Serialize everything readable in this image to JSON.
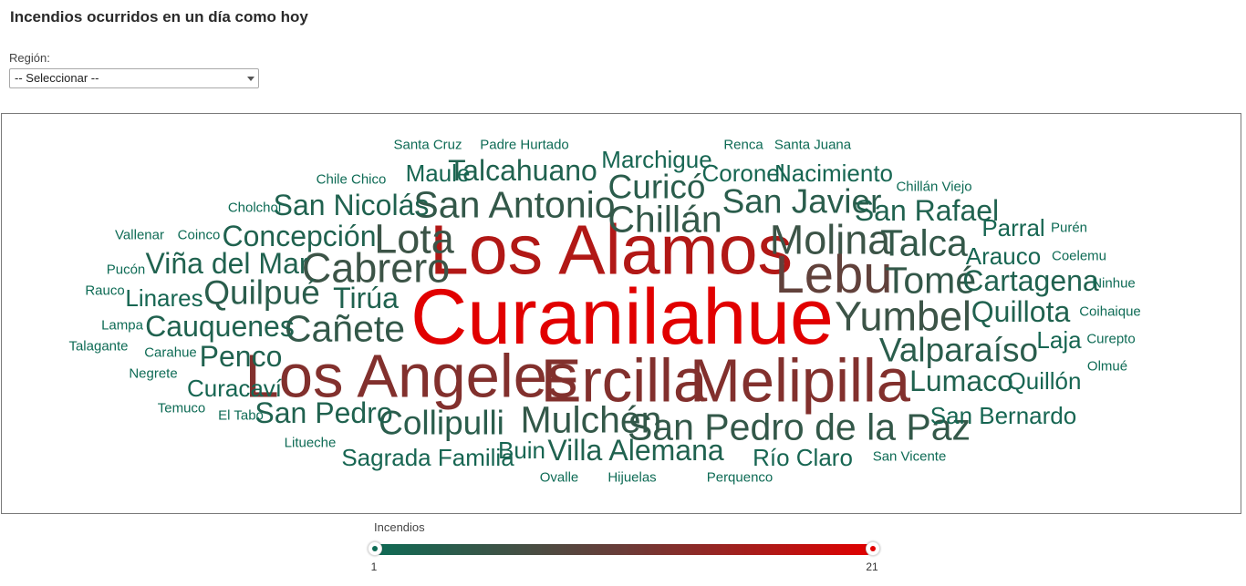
{
  "page": {
    "title": "Incendios ocurridos en un día como hoy"
  },
  "region_filter": {
    "label": "Región:",
    "selected": "-- Seleccionar --"
  },
  "legend": {
    "title": "Incendios",
    "min_label": "1",
    "max_label": "21",
    "min": 1,
    "max": 21,
    "color_low": "#0e6b55",
    "color_high": "#e10000"
  },
  "word_cloud": {
    "words": [
      {
        "text": "Curanilahue",
        "count": 21
      },
      {
        "text": "Los Alamos",
        "count": 17
      },
      {
        "text": "Los Angeles",
        "count": 13
      },
      {
        "text": "Ercilla",
        "count": 13
      },
      {
        "text": "Melipilla",
        "count": 13
      },
      {
        "text": "Lebu",
        "count": 10
      },
      {
        "text": "Molina",
        "count": 6
      },
      {
        "text": "Chillán",
        "count": 5
      },
      {
        "text": "Cabrero",
        "count": 6
      },
      {
        "text": "Lota",
        "count": 6
      },
      {
        "text": "San Antonio",
        "count": 5
      },
      {
        "text": "Yumbel",
        "count": 6
      },
      {
        "text": "Tomé",
        "count": 5
      },
      {
        "text": "Talca",
        "count": 5
      },
      {
        "text": "Cañete",
        "count": 5
      },
      {
        "text": "Mulchén",
        "count": 5
      },
      {
        "text": "San Pedro de la Paz",
        "count": 5
      },
      {
        "text": "Valparaíso",
        "count": 4
      },
      {
        "text": "Collipulli",
        "count": 4
      },
      {
        "text": "San Javier",
        "count": 4
      },
      {
        "text": "Curicó",
        "count": 4
      },
      {
        "text": "Quilpué",
        "count": 4
      },
      {
        "text": "Concepción",
        "count": 3
      },
      {
        "text": "Cauquenes",
        "count": 3
      },
      {
        "text": "Villa Alemana",
        "count": 3
      },
      {
        "text": "Quillota",
        "count": 3
      },
      {
        "text": "Tirúa",
        "count": 3
      },
      {
        "text": "Viña del Mar",
        "count": 3
      },
      {
        "text": "Talcahuano",
        "count": 3
      },
      {
        "text": "San Rafael",
        "count": 3
      },
      {
        "text": "Cartagena",
        "count": 3
      },
      {
        "text": "Lumaco",
        "count": 3
      },
      {
        "text": "San Nicolás",
        "count": 3
      },
      {
        "text": "Penco",
        "count": 3
      },
      {
        "text": "San Pedro",
        "count": 3
      },
      {
        "text": "Marchigue",
        "count": 2
      },
      {
        "text": "Coronel",
        "count": 2
      },
      {
        "text": "Nacimiento",
        "count": 2
      },
      {
        "text": "Maule",
        "count": 2
      },
      {
        "text": "Parral",
        "count": 2
      },
      {
        "text": "Arauco",
        "count": 2
      },
      {
        "text": "Linares",
        "count": 2
      },
      {
        "text": "Curacaví",
        "count": 2
      },
      {
        "text": "Sagrada Familia",
        "count": 2
      },
      {
        "text": "Buin",
        "count": 2
      },
      {
        "text": "Río Claro",
        "count": 2
      },
      {
        "text": "Quillón",
        "count": 2
      },
      {
        "text": "San Bernardo",
        "count": 2
      },
      {
        "text": "Laja",
        "count": 2
      },
      {
        "text": "Santa Cruz",
        "count": 1
      },
      {
        "text": "Padre Hurtado",
        "count": 1
      },
      {
        "text": "Renca",
        "count": 1
      },
      {
        "text": "Santa Juana",
        "count": 1
      },
      {
        "text": "Chile Chico",
        "count": 1
      },
      {
        "text": "Chillán Viejo",
        "count": 1
      },
      {
        "text": "Cholchol",
        "count": 1
      },
      {
        "text": "Vallenar",
        "count": 1
      },
      {
        "text": "Coinco",
        "count": 1
      },
      {
        "text": "Purén",
        "count": 1
      },
      {
        "text": "Coelemu",
        "count": 1
      },
      {
        "text": "Pucón",
        "count": 1
      },
      {
        "text": "Rauco",
        "count": 1
      },
      {
        "text": "Ninhue",
        "count": 1
      },
      {
        "text": "Lampa",
        "count": 1
      },
      {
        "text": "Coihaique",
        "count": 1
      },
      {
        "text": "Talagante",
        "count": 1
      },
      {
        "text": "Carahue",
        "count": 1
      },
      {
        "text": "Curepto",
        "count": 1
      },
      {
        "text": "Negrete",
        "count": 1
      },
      {
        "text": "Olmué",
        "count": 1
      },
      {
        "text": "Temuco",
        "count": 1
      },
      {
        "text": "El Tabo",
        "count": 1
      },
      {
        "text": "Litueche",
        "count": 1
      },
      {
        "text": "Ovalle",
        "count": 1
      },
      {
        "text": "Hijuelas",
        "count": 1
      },
      {
        "text": "Perquenco",
        "count": 1
      },
      {
        "text": "San Vicente",
        "count": 1
      }
    ]
  }
}
